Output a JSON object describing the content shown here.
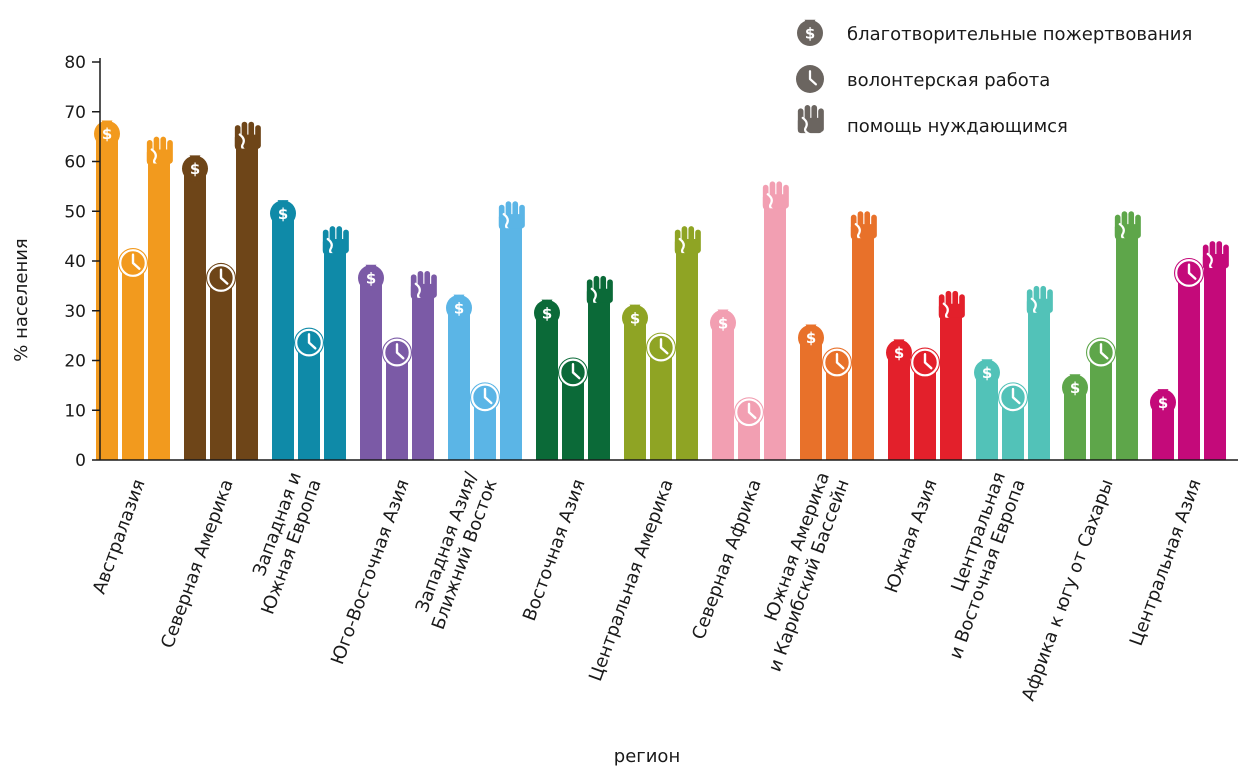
{
  "chart_data": {
    "type": "bar",
    "title": "",
    "xlabel": "регион",
    "ylabel": "% населения",
    "ylim": [
      0,
      80
    ],
    "yticks": [
      0,
      10,
      20,
      30,
      40,
      50,
      60,
      70,
      80
    ],
    "grid": false,
    "legend_position": "top-right",
    "categories": [
      {
        "label": [
          "Австралазия"
        ],
        "color": "#f29a1e"
      },
      {
        "label": [
          "Северная Америка"
        ],
        "color": "#6e4518"
      },
      {
        "label": [
          "Западная и",
          "Южная Европа"
        ],
        "color": "#0f8aa8"
      },
      {
        "label": [
          "Юго-Восточная Азия"
        ],
        "color": "#7b5aa6"
      },
      {
        "label": [
          "Западная Азия/",
          "Ближний Восток"
        ],
        "color": "#5bb5e6"
      },
      {
        "label": [
          "Восточная Азия"
        ],
        "color": "#0b6a38"
      },
      {
        "label": [
          "Центральная Америка"
        ],
        "color": "#8fa424"
      },
      {
        "label": [
          "Северная Африка"
        ],
        "color": "#f29fb2"
      },
      {
        "label": [
          "Южная Америка",
          "и Карибский Бассейн"
        ],
        "color": "#e8712a"
      },
      {
        "label": [
          "Южная Азия"
        ],
        "color": "#e3202b"
      },
      {
        "label": [
          "Центральная",
          "и Восточная Европа"
        ],
        "color": "#52c2b8"
      },
      {
        "label": [
          "Африка к югу от Сахары"
        ],
        "color": "#5ea64a"
      },
      {
        "label": [
          "Центральная Азия"
        ],
        "color": "#c40a7a"
      }
    ],
    "series": [
      {
        "name": "благотворительные пожертвования",
        "icon": "money-bag-icon",
        "values": [
          70,
          63,
          54,
          41,
          35,
          34,
          33,
          32,
          29,
          26,
          22,
          19,
          16
        ]
      },
      {
        "name": "волонтерская работа",
        "icon": "clock-icon",
        "values": [
          40,
          37,
          24,
          22,
          13,
          18,
          23,
          10,
          20,
          20,
          13,
          22,
          38
        ]
      },
      {
        "name": "помощь нуждающимся",
        "icon": "raised-hand-icon",
        "values": [
          65,
          68,
          47,
          38,
          52,
          37,
          47,
          56,
          50,
          34,
          35,
          50,
          44
        ]
      }
    ],
    "legend_icon_color": "#6b6560"
  }
}
